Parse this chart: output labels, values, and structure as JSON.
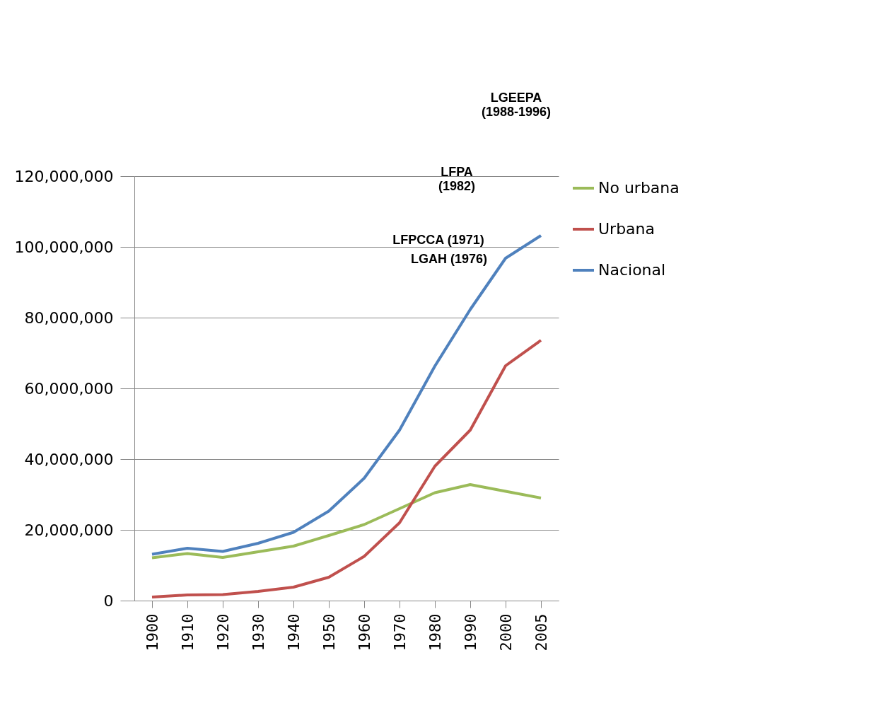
{
  "chart_data": {
    "type": "line",
    "categories": [
      "1900",
      "1910",
      "1920",
      "1930",
      "1940",
      "1950",
      "1960",
      "1970",
      "1980",
      "1990",
      "2000",
      "2005"
    ],
    "series": [
      {
        "name": "No urbana",
        "color": "#9bbb59",
        "values": [
          12100000,
          13300000,
          12200000,
          13800000,
          15400000,
          18400000,
          21500000,
          26000000,
          30500000,
          32800000,
          30900000,
          29000000
        ]
      },
      {
        "name": "Urbana",
        "color": "#c0504d",
        "values": [
          1000000,
          1600000,
          1700000,
          2600000,
          3800000,
          6600000,
          12500000,
          22000000,
          38000000,
          48200000,
          66400000,
          73600000
        ]
      },
      {
        "name": "Nacional",
        "color": "#4f81bd",
        "values": [
          13100000,
          14800000,
          13900000,
          16200000,
          19300000,
          25300000,
          34600000,
          48200000,
          66300000,
          82300000,
          96800000,
          103200000
        ]
      }
    ],
    "ylim": [
      0,
      120000000
    ],
    "yticks": [
      0,
      {
        "value": 20000000,
        "label": "20,000,000"
      },
      {
        "value": 40000000,
        "label": "40,000,000"
      },
      {
        "value": 60000000,
        "label": "60,000,000"
      },
      {
        "value": 80000000,
        "label": "80,000,000"
      },
      {
        "value": 100000000,
        "label": "100,000,000"
      },
      {
        "value": 120000000,
        "label": "120,000,000"
      }
    ],
    "grid": "y",
    "legend": "right",
    "marker": "none",
    "line_style": "solid",
    "annotations": [
      "LFPCCA (1971)",
      "LGAH (1976)",
      "LFPA\n(1982)",
      "LGEEPA\n(1988-1996)"
    ]
  }
}
